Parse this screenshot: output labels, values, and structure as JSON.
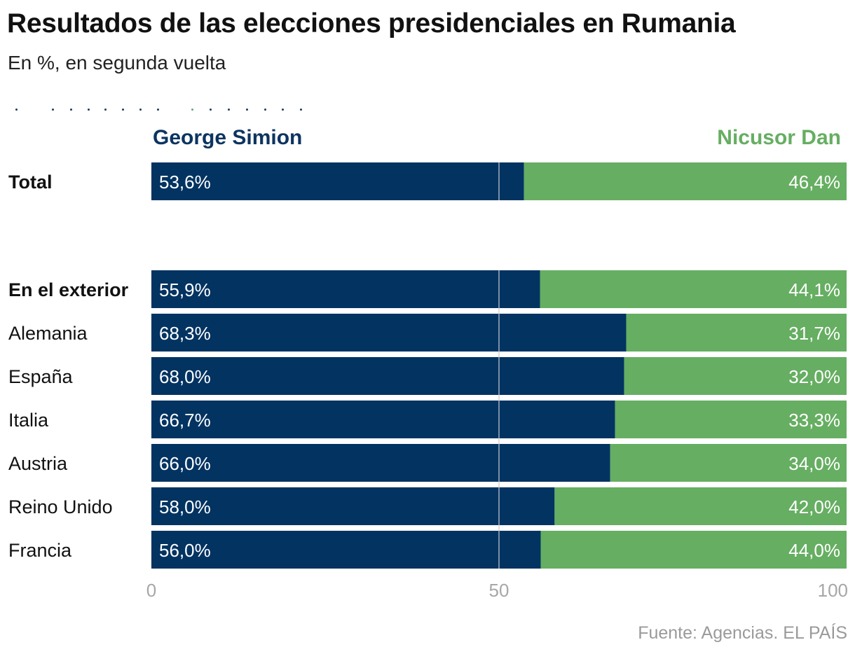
{
  "chart_data": {
    "type": "bar",
    "stacked": true,
    "orientation": "horizontal",
    "title": "Resultados de las elecciones presidenciales en Rumania",
    "subtitle": "En %, en segunda vuelta",
    "categories": [
      "Total",
      "En el exterior",
      "Alemania",
      "España",
      "Italia",
      "Austria",
      "Reino Unido",
      "Francia"
    ],
    "bold_categories": [
      "Total",
      "En el exterior"
    ],
    "series": [
      {
        "name": "George Simion",
        "color": "#023361",
        "values": [
          53.6,
          55.9,
          68.3,
          68.0,
          66.7,
          66.0,
          58.0,
          56.0
        ],
        "labels": [
          "53,6%",
          "55,9%",
          "68,3%",
          "68,0%",
          "66,7%",
          "66,0%",
          "58,0%",
          "56,0%"
        ]
      },
      {
        "name": "Nicusor Dan",
        "color": "#66ae62",
        "values": [
          46.4,
          44.1,
          31.7,
          32.0,
          33.3,
          34.0,
          42.0,
          44.0
        ],
        "labels": [
          "46,4%",
          "44,1%",
          "31,7%",
          "32,0%",
          "33,3%",
          "34,0%",
          "42,0%",
          "44,0%"
        ]
      }
    ],
    "xlim": [
      0,
      100
    ],
    "xticks": [
      0,
      50,
      100
    ],
    "xtick_labels": [
      "0",
      "50",
      "100"
    ],
    "gridline_at": 50,
    "source": "Fuente: Agencias. EL PAÍS"
  },
  "legend_colors": {
    "simion": "#0c3460",
    "dan": "#66ae62"
  }
}
